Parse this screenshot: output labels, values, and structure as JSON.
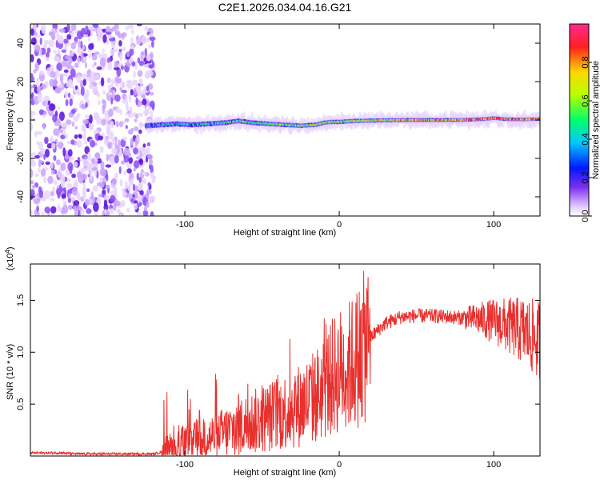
{
  "chart_data": [
    {
      "type": "heatmap",
      "title": "C2E1.2026.034.04.16.G21",
      "xlabel": "Height of straight line (km)",
      "ylabel": "Frequency (Hz)",
      "xlim": [
        -200,
        130
      ],
      "ylim": [
        -50,
        50
      ],
      "x_ticks": [
        -100,
        0,
        100
      ],
      "x_tick_labels": [
        "-100",
        "0",
        "100"
      ],
      "y_ticks": [
        -40,
        -20,
        0,
        20,
        40
      ],
      "y_tick_labels": [
        "-40",
        "-20",
        "0",
        "20",
        "40"
      ],
      "grid": false,
      "colorbar": {
        "label": "Normalized spectral amplitude",
        "range": [
          0,
          1
        ],
        "ticks": [
          0.0,
          0.2,
          0.4,
          0.6,
          0.8
        ],
        "tick_labels": [
          "0.0",
          "0.2",
          "0.4",
          "0.6",
          "0.8"
        ],
        "colors": [
          "#f2e0ff",
          "#7b2ff0",
          "#0018ff",
          "#00c8ff",
          "#00ff6a",
          "#b8ff00",
          "#ffd700",
          "#ff2020",
          "#ff2a90"
        ]
      },
      "signal_track": {
        "x": [
          -125,
          -115,
          -105,
          -95,
          -85,
          -75,
          -65,
          -55,
          -45,
          -35,
          -25,
          -15,
          -10,
          -5,
          0,
          10,
          20,
          40,
          60,
          80,
          95,
          100,
          110,
          120,
          130
        ],
        "y": [
          -3,
          -2.5,
          -2,
          -2.5,
          -2,
          -1.5,
          -0.5,
          -1.5,
          -2,
          -2.5,
          -3,
          -2.5,
          -1.5,
          -1,
          -1,
          -0.5,
          -0.3,
          0,
          0,
          0,
          0.5,
          1,
          0.3,
          0.3,
          0.5
        ]
      },
      "noise_region_x": [
        -200,
        -120
      ]
    },
    {
      "type": "line",
      "xlabel": "Height of straight line (km)",
      "ylabel": "SNR (10 * v/v)",
      "y_scale_label": "(x10",
      "y_scale_exp": "4",
      "xlim": [
        -200,
        130
      ],
      "ylim": [
        0,
        1.85
      ],
      "x_ticks": [
        -100,
        0,
        100
      ],
      "x_tick_labels": [
        "-100",
        "0",
        "100"
      ],
      "y_ticks": [
        0.5,
        1.0,
        1.5
      ],
      "y_tick_labels": [
        "0.5",
        "1.0",
        "1.5"
      ],
      "color": "#e8302e",
      "grid": false,
      "series": [
        {
          "name": "SNR",
          "x": [
            -200,
            -190,
            -180,
            -170,
            -160,
            -150,
            -140,
            -130,
            -120,
            -112,
            -105,
            -95,
            -85,
            -75,
            -65,
            -55,
            -45,
            -35,
            -25,
            -15,
            -10,
            -5,
            0,
            5,
            10,
            15,
            20,
            30,
            40,
            50,
            60,
            70,
            80,
            90,
            100,
            110,
            120,
            125,
            130
          ],
          "y": [
            0.03,
            0.03,
            0.03,
            0.02,
            0.02,
            0.02,
            0.02,
            0.02,
            0.02,
            0.05,
            0.1,
            0.13,
            0.17,
            0.22,
            0.28,
            0.33,
            0.38,
            0.43,
            0.49,
            0.58,
            0.66,
            0.75,
            0.82,
            0.85,
            0.92,
            1.02,
            1.14,
            1.28,
            1.34,
            1.35,
            1.35,
            1.34,
            1.33,
            1.32,
            1.3,
            1.25,
            1.2,
            1.15,
            1.1
          ]
        }
      ]
    }
  ]
}
